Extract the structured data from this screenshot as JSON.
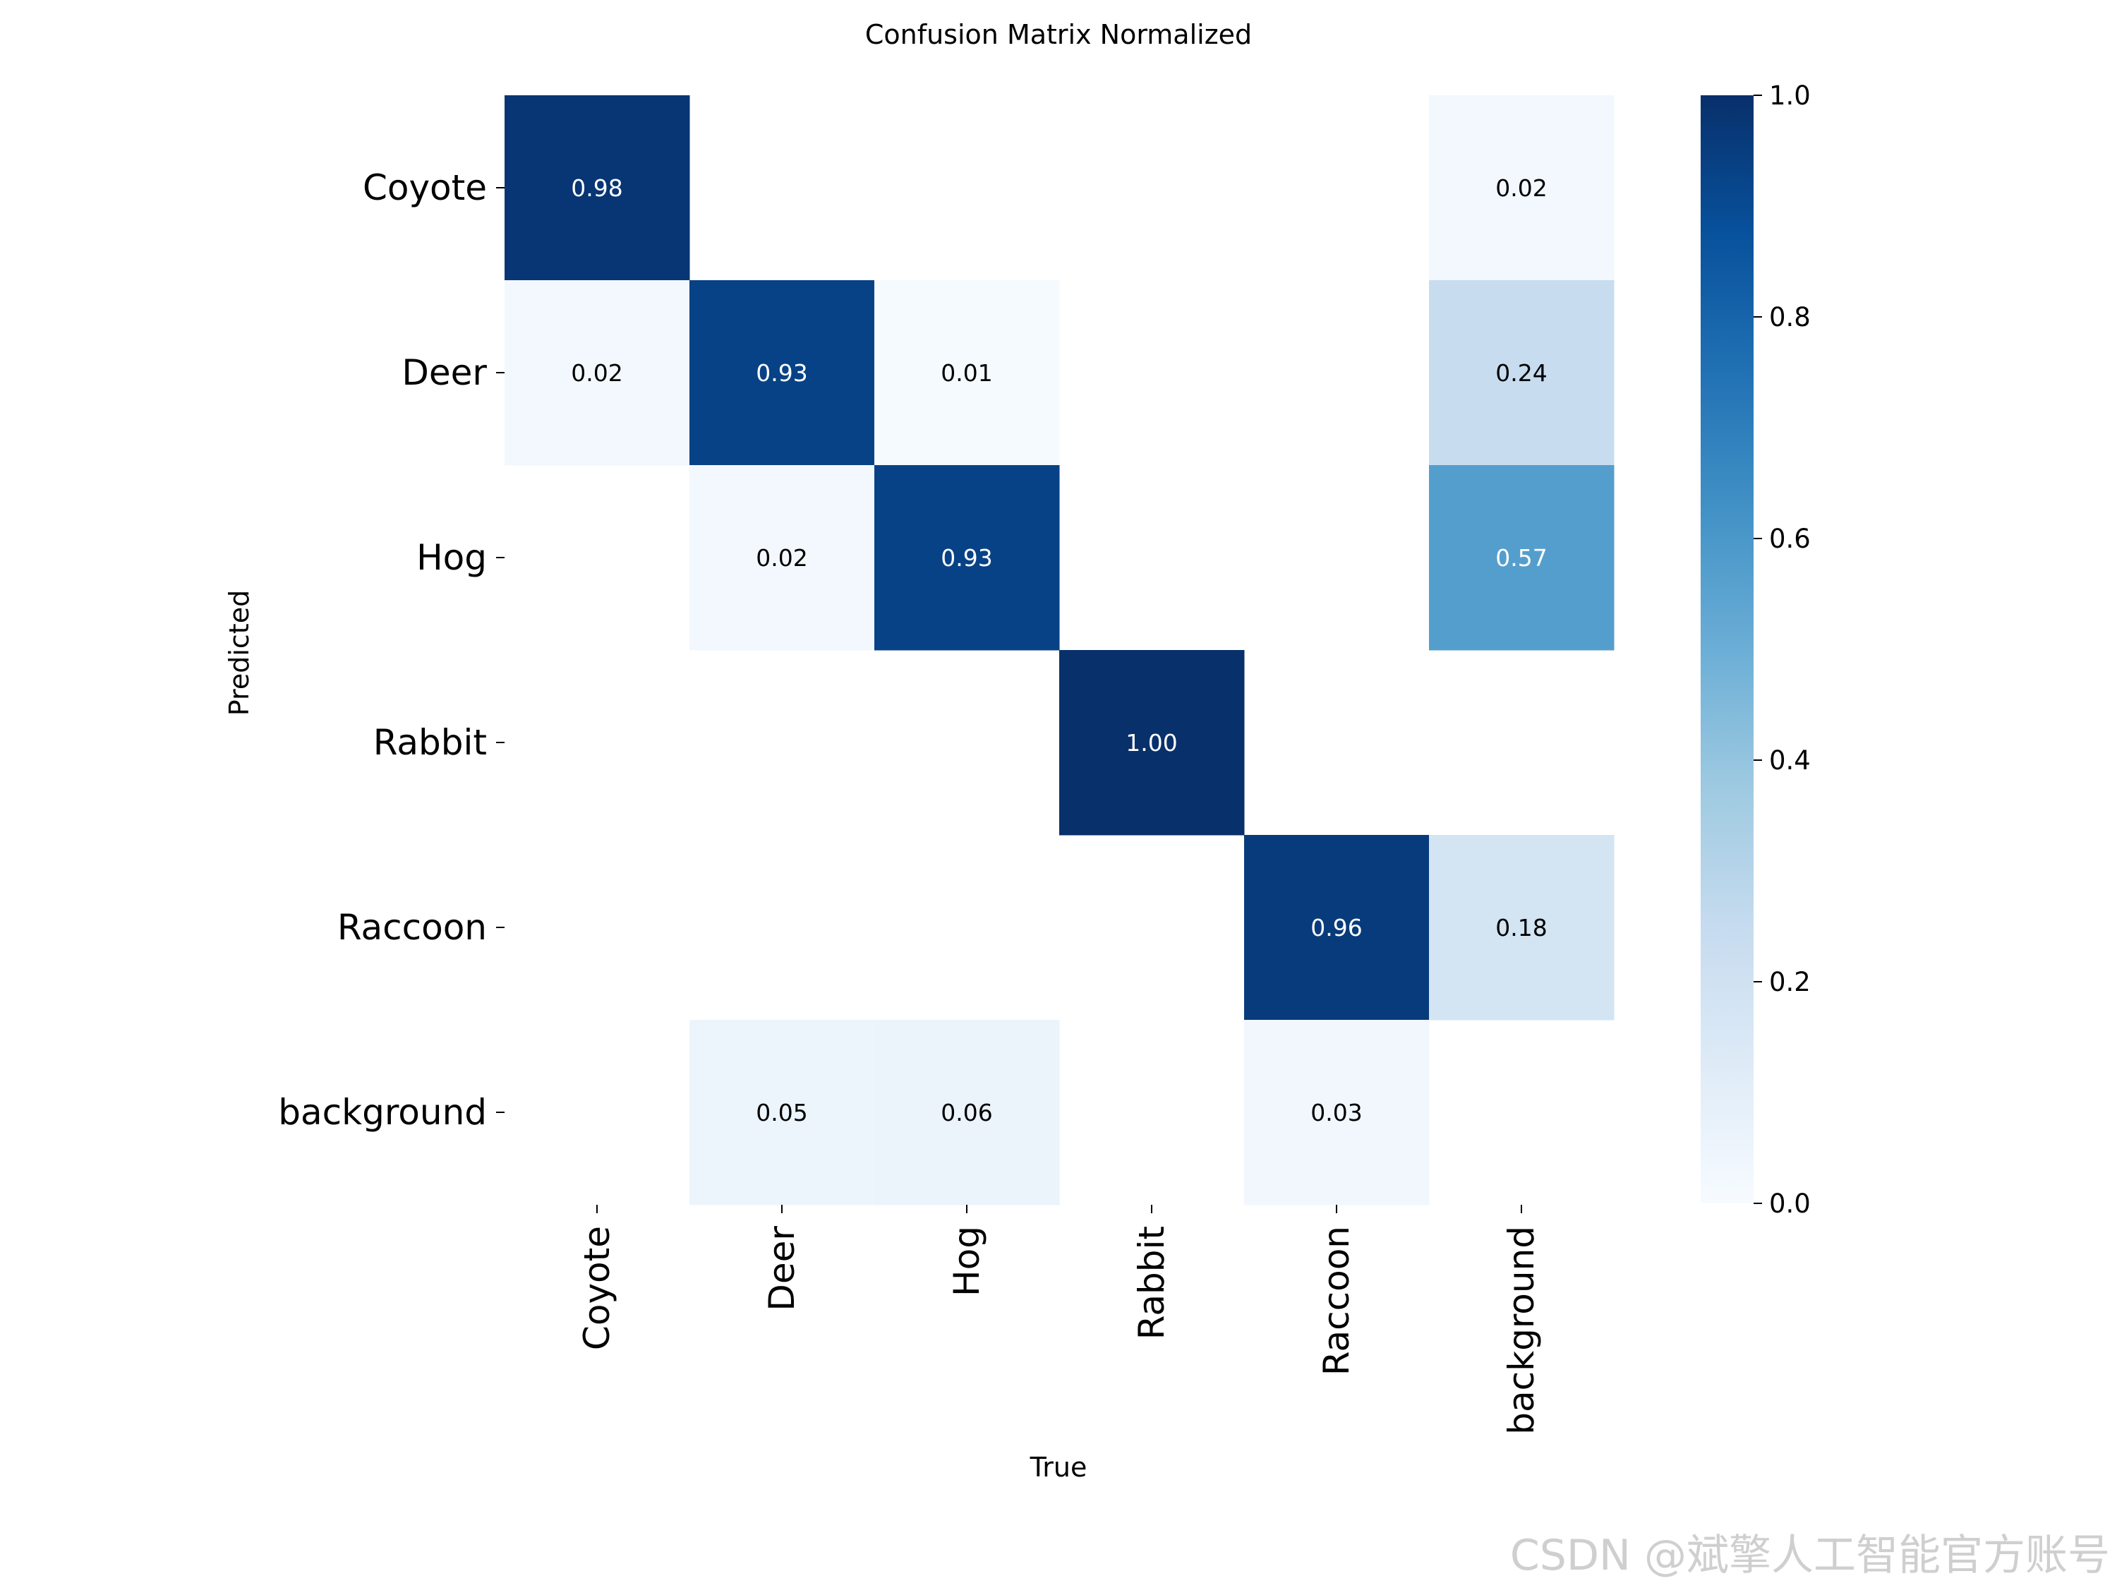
{
  "chart_data": {
    "type": "heatmap",
    "title": "Confusion Matrix Normalized",
    "xlabel": "True",
    "ylabel": "Predicted",
    "x_categories": [
      "Coyote",
      "Deer",
      "Hog",
      "Rabbit",
      "Raccoon",
      "background"
    ],
    "y_categories": [
      "Coyote",
      "Deer",
      "Hog",
      "Rabbit",
      "Raccoon",
      "background"
    ],
    "values": [
      [
        0.98,
        null,
        null,
        null,
        null,
        0.02
      ],
      [
        0.02,
        0.93,
        0.01,
        null,
        null,
        0.24
      ],
      [
        null,
        0.02,
        0.93,
        null,
        null,
        0.57
      ],
      [
        null,
        null,
        null,
        1.0,
        null,
        null
      ],
      [
        null,
        null,
        null,
        null,
        0.96,
        0.18
      ],
      [
        null,
        0.05,
        0.06,
        null,
        0.03,
        null
      ]
    ],
    "colorscale": "Blues",
    "colorbar": {
      "range": [
        0.0,
        1.0
      ],
      "ticks": [
        "0.0",
        "0.2",
        "0.4",
        "0.6",
        "0.8",
        "1.0"
      ]
    }
  },
  "watermark": "CSDN @斌擎人工智能官方账号"
}
